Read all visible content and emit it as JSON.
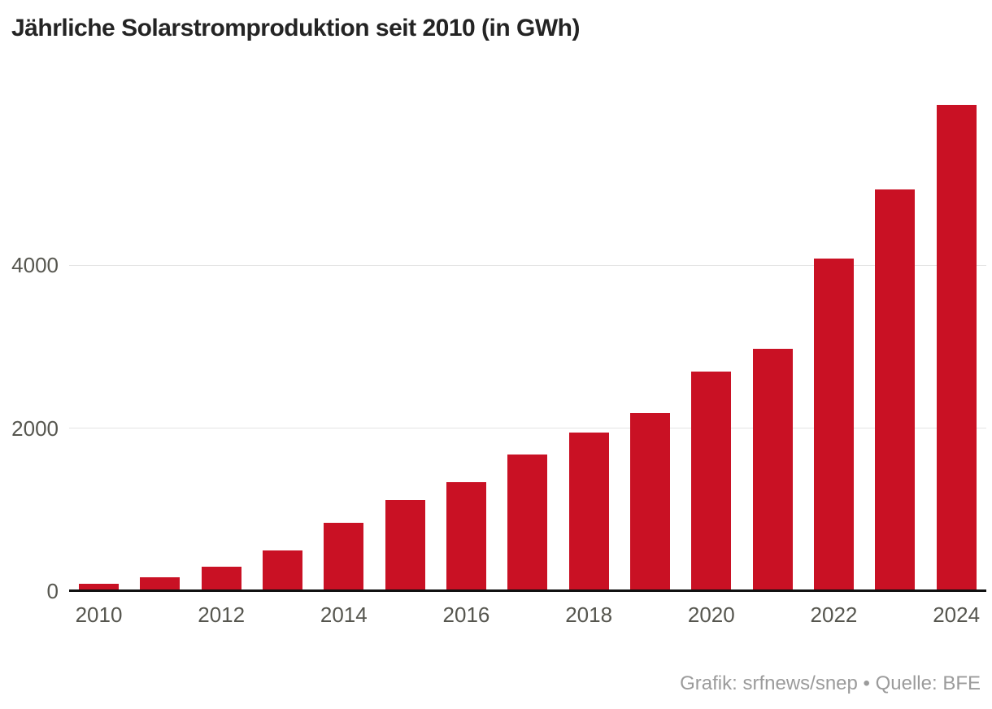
{
  "title": "Jährliche Solarstromproduktion seit 2010 (in GWh)",
  "footer": {
    "credit": "Grafik: srfnews/snep • Quelle: BFE"
  },
  "colors": {
    "bar": "#c91124",
    "axis": "#111111",
    "grid": "#e4e4e4",
    "tick_label": "#56564f",
    "title": "#242424",
    "credit": "#9b9b9b"
  },
  "chart_data": {
    "type": "bar",
    "title": "Jährliche Solarstromproduktion seit 2010 (in GWh)",
    "unit": "GWh",
    "categories": [
      "2010",
      "2011",
      "2012",
      "2013",
      "2014",
      "2015",
      "2016",
      "2017",
      "2018",
      "2019",
      "2020",
      "2021",
      "2022",
      "2023",
      "2024"
    ],
    "values": [
      90,
      170,
      300,
      500,
      840,
      1120,
      1340,
      1680,
      1950,
      2180,
      2690,
      2970,
      4080,
      4930,
      5970
    ],
    "xlabel": "",
    "ylabel": "GWh",
    "ylim": [
      0,
      6000
    ],
    "yticks": [
      0,
      2000,
      4000
    ],
    "x_tick_labels": [
      "2010",
      "2012",
      "2014",
      "2016",
      "2018",
      "2020",
      "2022",
      "2024"
    ],
    "grid": "horizontal-only",
    "legend": "none"
  }
}
